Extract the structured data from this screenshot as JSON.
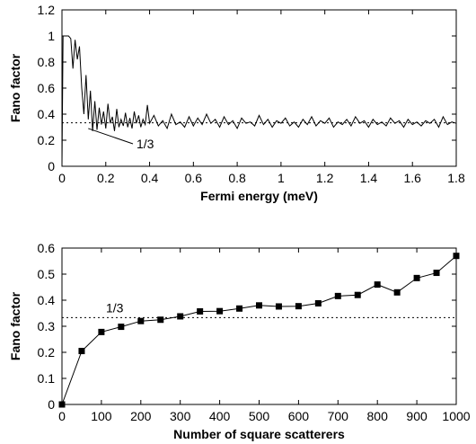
{
  "chart_data": [
    {
      "type": "line",
      "xlabel": "Fermi energy (meV)",
      "ylabel": "Fano factor",
      "xlim": [
        0,
        1.8
      ],
      "ylim": [
        0,
        1.2
      ],
      "x_ticks": [
        "0",
        "0.2",
        "0.4",
        "0.6",
        "0.8",
        "1",
        "1.2",
        "1.4",
        "1.6",
        "1.8"
      ],
      "y_ticks": [
        "0",
        "0.2",
        "0.4",
        "0.6",
        "0.8",
        "1",
        "1.2"
      ],
      "reference_line": {
        "y": 0.3333,
        "style": "dotted",
        "label": "1/3"
      },
      "series": [
        {
          "x": [
            0.0,
            0.005,
            0.01,
            0.015,
            0.02,
            0.03,
            0.04,
            0.05,
            0.06,
            0.07,
            0.08,
            0.09,
            0.1,
            0.11,
            0.12,
            0.13,
            0.14,
            0.15,
            0.16,
            0.17,
            0.18,
            0.19,
            0.2,
            0.21,
            0.22,
            0.23,
            0.24,
            0.25,
            0.26,
            0.27,
            0.28,
            0.29,
            0.3,
            0.31,
            0.32,
            0.33,
            0.34,
            0.35,
            0.36,
            0.37,
            0.38,
            0.39,
            0.4,
            0.42,
            0.44,
            0.46,
            0.48,
            0.5,
            0.52,
            0.54,
            0.56,
            0.58,
            0.6,
            0.62,
            0.64,
            0.66,
            0.68,
            0.7,
            0.72,
            0.74,
            0.76,
            0.78,
            0.8,
            0.82,
            0.84,
            0.86,
            0.88,
            0.9,
            0.92,
            0.94,
            0.96,
            0.98,
            1.0,
            1.02,
            1.04,
            1.06,
            1.08,
            1.1,
            1.12,
            1.14,
            1.16,
            1.18,
            1.2,
            1.22,
            1.24,
            1.26,
            1.28,
            1.3,
            1.32,
            1.34,
            1.36,
            1.38,
            1.4,
            1.42,
            1.44,
            1.46,
            1.48,
            1.5,
            1.52,
            1.54,
            1.56,
            1.58,
            1.6,
            1.62,
            1.64,
            1.66,
            1.68,
            1.7,
            1.72,
            1.74,
            1.76,
            1.78,
            1.8
          ],
          "y": [
            0.0,
            1.0,
            1.0,
            1.0,
            1.0,
            1.0,
            0.98,
            0.75,
            0.97,
            0.82,
            0.92,
            0.6,
            0.4,
            0.7,
            0.36,
            0.58,
            0.27,
            0.5,
            0.28,
            0.45,
            0.32,
            0.42,
            0.29,
            0.48,
            0.33,
            0.38,
            0.27,
            0.44,
            0.3,
            0.36,
            0.31,
            0.41,
            0.3,
            0.37,
            0.29,
            0.42,
            0.33,
            0.39,
            0.3,
            0.36,
            0.32,
            0.47,
            0.33,
            0.39,
            0.31,
            0.35,
            0.29,
            0.4,
            0.32,
            0.34,
            0.3,
            0.38,
            0.31,
            0.37,
            0.32,
            0.4,
            0.33,
            0.36,
            0.3,
            0.38,
            0.32,
            0.35,
            0.29,
            0.37,
            0.33,
            0.34,
            0.31,
            0.39,
            0.32,
            0.36,
            0.3,
            0.35,
            0.33,
            0.37,
            0.31,
            0.34,
            0.3,
            0.36,
            0.32,
            0.38,
            0.31,
            0.35,
            0.33,
            0.37,
            0.3,
            0.34,
            0.32,
            0.36,
            0.31,
            0.38,
            0.33,
            0.35,
            0.3,
            0.36,
            0.32,
            0.34,
            0.31,
            0.37,
            0.33,
            0.35,
            0.3,
            0.36,
            0.32,
            0.34,
            0.31,
            0.35,
            0.33,
            0.36,
            0.3,
            0.38,
            0.32,
            0.34,
            0.33
          ]
        }
      ]
    },
    {
      "type": "line",
      "xlabel": "Number of square scatterers",
      "ylabel": "Fano factor",
      "xlim": [
        0,
        1000
      ],
      "ylim": [
        0,
        0.6
      ],
      "x_ticks": [
        "0",
        "100",
        "200",
        "300",
        "400",
        "500",
        "600",
        "700",
        "800",
        "900",
        "1000"
      ],
      "y_ticks": [
        "0",
        "0.1",
        "0.2",
        "0.3",
        "0.4",
        "0.5",
        "0.6"
      ],
      "reference_line": {
        "y": 0.3333,
        "style": "dotted",
        "label": "1/3"
      },
      "series": [
        {
          "marker": "square",
          "x": [
            0,
            50,
            100,
            150,
            200,
            250,
            300,
            350,
            400,
            450,
            500,
            550,
            600,
            650,
            700,
            750,
            800,
            850,
            900,
            950,
            1000
          ],
          "y": [
            0.0,
            0.205,
            0.278,
            0.298,
            0.32,
            0.325,
            0.338,
            0.357,
            0.358,
            0.368,
            0.38,
            0.376,
            0.377,
            0.388,
            0.416,
            0.42,
            0.46,
            0.43,
            0.485,
            0.505,
            0.57
          ]
        }
      ]
    }
  ]
}
